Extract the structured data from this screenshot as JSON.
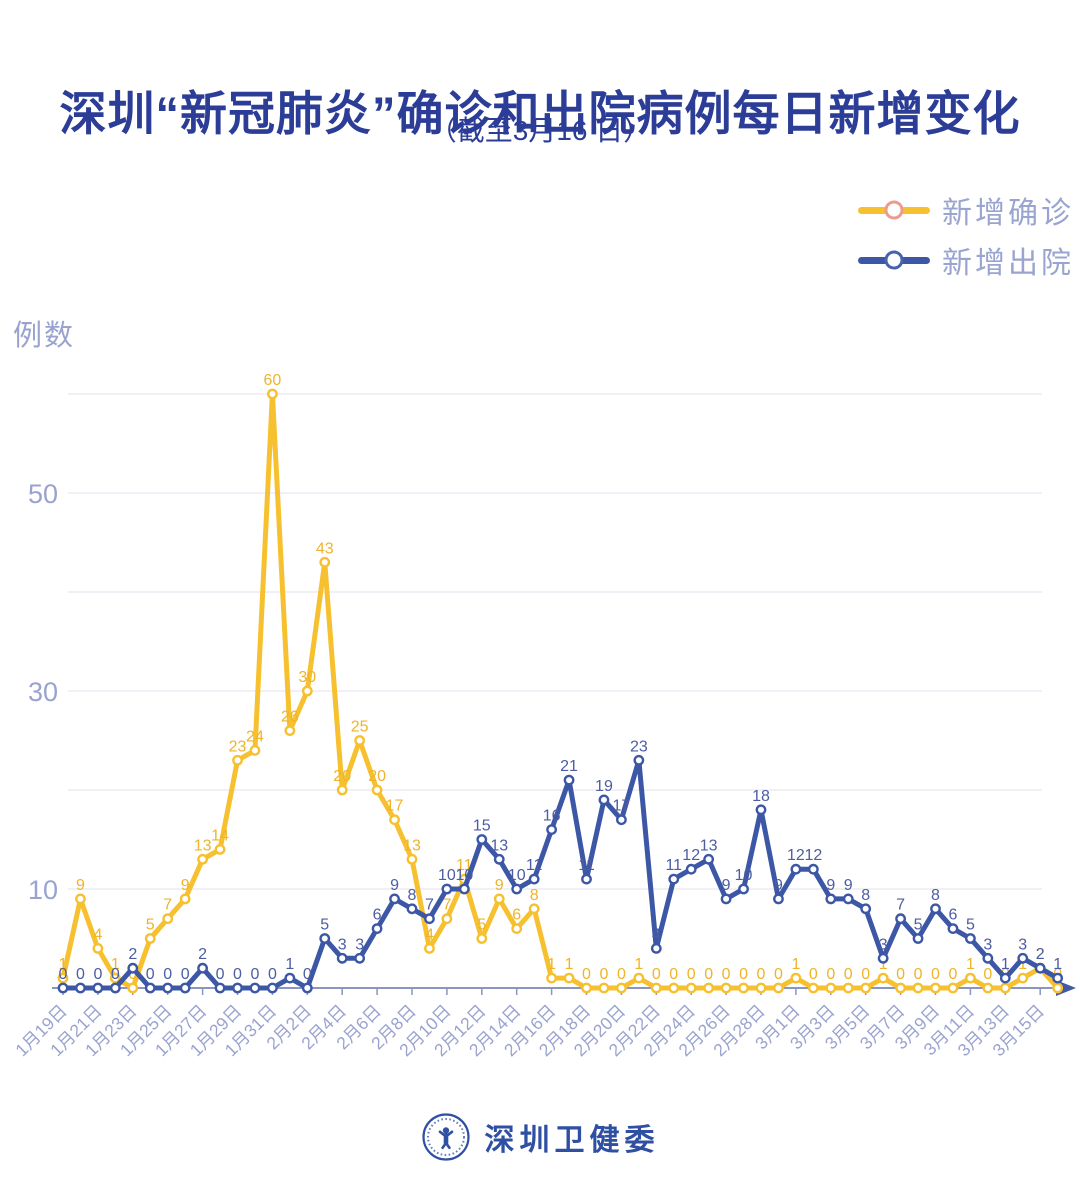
{
  "chart_data": {
    "type": "line",
    "title": "深圳“新冠肺炎”确诊和出院病例每日新增变化",
    "subtitle": "（截至3月16 日）",
    "ylabel": "例数",
    "ylim": [
      0,
      62
    ],
    "y_ticks": [
      10,
      30,
      50
    ],
    "grid_lines": [
      10,
      20,
      30,
      40,
      50,
      60
    ],
    "x_tick_interval": 2,
    "legend_position": "top-right",
    "categories": [
      "1月19日",
      "1月20日",
      "1月21日",
      "1月22日",
      "1月23日",
      "1月24日",
      "1月25日",
      "1月26日",
      "1月27日",
      "1月28日",
      "1月29日",
      "1月30日",
      "1月31日",
      "2月1日",
      "2月2日",
      "2月3日",
      "2月4日",
      "2月5日",
      "2月6日",
      "2月7日",
      "2月8日",
      "2月9日",
      "2月10日",
      "2月11日",
      "2月12日",
      "2月13日",
      "2月14日",
      "2月15日",
      "2月16日",
      "2月17日",
      "2月18日",
      "2月19日",
      "2月20日",
      "2月21日",
      "2月22日",
      "2月23日",
      "2月24日",
      "2月25日",
      "2月26日",
      "2月27日",
      "2月28日",
      "2月29日",
      "3月1日",
      "3月2日",
      "3月3日",
      "3月4日",
      "3月5日",
      "3月6日",
      "3月7日",
      "3月8日",
      "3月9日",
      "3月10日",
      "3月11日",
      "3月12日",
      "3月13日",
      "3月14日",
      "3月15日",
      "3月16日"
    ],
    "series": [
      {
        "name": "新增确诊",
        "color": "#F6C02F",
        "label_color": "#EFB42A",
        "marker": "hollow-circle",
        "values": [
          1,
          9,
          4,
          1,
          0,
          5,
          7,
          9,
          13,
          14,
          23,
          24,
          60,
          26,
          30,
          43,
          20,
          25,
          20,
          17,
          13,
          4,
          7,
          11,
          5,
          9,
          6,
          8,
          1,
          1,
          0,
          0,
          0,
          1,
          0,
          0,
          0,
          0,
          0,
          0,
          0,
          0,
          1,
          0,
          0,
          0,
          0,
          1,
          0,
          0,
          0,
          0,
          1,
          0,
          0,
          1,
          2,
          0
        ]
      },
      {
        "name": "新增出院",
        "color": "#3C57A6",
        "label_color": "#4C5DA2",
        "marker": "hollow-circle",
        "values": [
          0,
          0,
          0,
          0,
          2,
          0,
          0,
          0,
          2,
          0,
          0,
          0,
          0,
          1,
          0,
          5,
          3,
          3,
          6,
          9,
          8,
          7,
          10,
          10,
          15,
          13,
          10,
          11,
          16,
          21,
          11,
          19,
          17,
          23,
          4,
          11,
          12,
          13,
          9,
          10,
          18,
          9,
          12,
          12,
          9,
          9,
          8,
          3,
          7,
          5,
          8,
          6,
          5,
          3,
          1,
          3,
          2,
          1
        ]
      }
    ]
  },
  "footer": {
    "logo_text": "深圳卫健委"
  },
  "colors": {
    "title": "#2B3D96",
    "axis_text": "#9AA3CF",
    "x_axis_line": "#8B95BF",
    "axis_arrow": "#4159A8",
    "gridline": "#E7E7F0",
    "background": "#FFFFFF",
    "legend_text": "#9AA4D0",
    "legend_marker_ring_confirmed": "#EB9C8C",
    "legend_marker_ring_discharged": "#4763AD",
    "logo_blue": "#2F4FA2"
  }
}
